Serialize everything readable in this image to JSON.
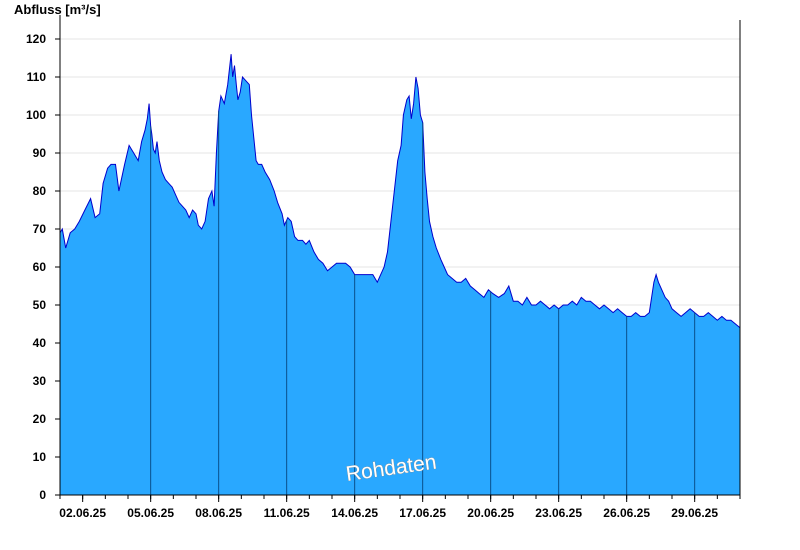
{
  "chart_data": {
    "type": "area",
    "ylabel": "Abfluss [m³/s]",
    "xlabel": "",
    "title": "",
    "watermark": "Rohdaten",
    "ylim": [
      0,
      125
    ],
    "xlim": [
      1.0,
      31.0
    ],
    "yticks": [
      0,
      10,
      20,
      30,
      40,
      50,
      60,
      70,
      80,
      90,
      100,
      110,
      120
    ],
    "xticks": [
      {
        "pos": 2,
        "label": "02.06.25"
      },
      {
        "pos": 5,
        "label": "05.06.25"
      },
      {
        "pos": 8,
        "label": "08.06.25"
      },
      {
        "pos": 11,
        "label": "11.06.25"
      },
      {
        "pos": 14,
        "label": "14.06.25"
      },
      {
        "pos": 17,
        "label": "17.06.25"
      },
      {
        "pos": 20,
        "label": "20.06.25"
      },
      {
        "pos": 23,
        "label": "23.06.25"
      },
      {
        "pos": 26,
        "label": "26.06.25"
      },
      {
        "pos": 29,
        "label": "29.06.25"
      }
    ],
    "fill_color": "#29a8ff",
    "line_color": "#0000cc",
    "grid": "horizontal",
    "series": [
      {
        "x": [
          1.0,
          1.1,
          1.25,
          1.45,
          1.65,
          1.85,
          2.1,
          2.35,
          2.55,
          2.75,
          2.9,
          3.1,
          3.25,
          3.45,
          3.6,
          3.85,
          4.05,
          4.25,
          4.45,
          4.6,
          4.75,
          4.85,
          4.93,
          5.0,
          5.05,
          5.12,
          5.2,
          5.28,
          5.38,
          5.5,
          5.65,
          5.8,
          5.95,
          6.1,
          6.25,
          6.4,
          6.55,
          6.7,
          6.85,
          7.0,
          7.1,
          7.25,
          7.4,
          7.55,
          7.7,
          7.8,
          7.9,
          8.0,
          8.1,
          8.25,
          8.4,
          8.55,
          8.62,
          8.7,
          8.78,
          8.85,
          8.95,
          9.05,
          9.2,
          9.35,
          9.45,
          9.55,
          9.65,
          9.75,
          9.9,
          10.05,
          10.25,
          10.45,
          10.6,
          10.8,
          10.9,
          11.05,
          11.2,
          11.35,
          11.5,
          11.7,
          11.85,
          12.0,
          12.2,
          12.4,
          12.6,
          12.8,
          13.0,
          13.2,
          13.4,
          13.6,
          13.8,
          14.0,
          14.2,
          14.4,
          14.6,
          14.8,
          15.0,
          15.15,
          15.3,
          15.45,
          15.6,
          15.75,
          15.9,
          16.05,
          16.15,
          16.3,
          16.4,
          16.5,
          16.6,
          16.7,
          16.8,
          16.9,
          17.0,
          17.1,
          17.2,
          17.3,
          17.45,
          17.6,
          17.8,
          17.95,
          18.1,
          18.3,
          18.5,
          18.7,
          18.9,
          19.1,
          19.3,
          19.5,
          19.7,
          19.9,
          20.1,
          20.35,
          20.6,
          20.8,
          21.0,
          21.2,
          21.4,
          21.6,
          21.8,
          22.0,
          22.2,
          22.4,
          22.6,
          22.8,
          23.0,
          23.2,
          23.4,
          23.6,
          23.8,
          24.0,
          24.2,
          24.4,
          24.6,
          24.8,
          25.0,
          25.2,
          25.4,
          25.6,
          25.8,
          26.0,
          26.2,
          26.4,
          26.6,
          26.8,
          27.0,
          27.1,
          27.2,
          27.3,
          27.4,
          27.55,
          27.7,
          27.85,
          28.0,
          28.2,
          28.4,
          28.6,
          28.8,
          29.0,
          29.2,
          29.4,
          29.6,
          29.8,
          30.0,
          30.2,
          30.4,
          30.6,
          30.8,
          31.0
        ],
        "values": [
          69,
          70,
          65,
          69,
          70,
          72,
          75,
          78,
          73,
          74,
          82,
          86,
          87,
          87,
          80,
          87,
          92,
          90,
          88,
          93,
          96,
          99,
          103,
          97,
          95,
          91,
          90,
          93,
          88,
          85,
          83,
          82,
          81,
          79,
          77,
          76,
          75,
          73,
          75,
          74,
          71,
          70,
          72,
          78,
          80,
          76,
          90,
          101,
          105,
          103,
          108,
          116,
          110,
          113,
          108,
          104,
          106,
          110,
          109,
          108,
          100,
          94,
          88,
          87,
          87,
          85,
          83,
          80,
          77,
          74,
          71,
          73,
          72,
          68,
          67,
          67,
          66,
          67,
          64,
          62,
          61,
          59,
          60,
          61,
          61,
          61,
          60,
          58,
          58,
          58,
          58,
          58,
          56,
          58,
          60,
          64,
          72,
          80,
          88,
          92,
          100,
          104,
          105,
          99,
          103,
          110,
          107,
          100,
          98,
          85,
          78,
          72,
          68,
          65,
          62,
          60,
          58,
          57,
          56,
          56,
          57,
          55,
          54,
          53,
          52,
          54,
          53,
          52,
          53,
          55,
          51,
          51,
          50,
          52,
          50,
          50,
          51,
          50,
          49,
          50,
          49,
          50,
          50,
          51,
          50,
          52,
          51,
          51,
          50,
          49,
          50,
          49,
          48,
          49,
          48,
          47,
          47,
          48,
          47,
          47,
          48,
          52,
          56,
          58,
          56,
          54,
          52,
          51,
          49,
          48,
          47,
          48,
          49,
          48,
          47,
          47,
          48,
          47,
          46,
          47,
          46,
          46,
          45,
          44
        ]
      }
    ]
  }
}
